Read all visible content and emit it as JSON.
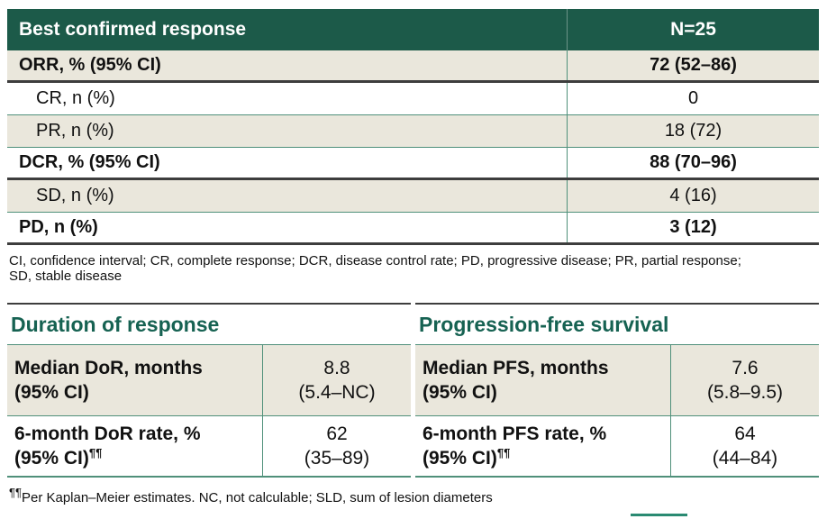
{
  "theme": {
    "header_bg": "#1c5a49",
    "header_text": "#ffffff",
    "beige_row": "#eae7dc",
    "teal_border": "#4f907a",
    "dark_border": "#3d3d3d",
    "heading_text": "#166252",
    "accent": "#2a8a72"
  },
  "response_table": {
    "header": {
      "label": "Best confirmed response",
      "value": "N=25"
    },
    "rows": [
      {
        "label": "ORR, % (95% CI)",
        "value": "72 (52–86)"
      },
      {
        "label": "CR, n (%)",
        "value": "0"
      },
      {
        "label": "PR, n (%)",
        "value": "18 (72)"
      },
      {
        "label": "DCR, % (95% CI)",
        "value": "88 (70–96)"
      },
      {
        "label": "SD, n (%)",
        "value": "4 (16)"
      },
      {
        "label": "PD, n (%)",
        "value": "3 (12)"
      }
    ],
    "footnote_line1": "CI, confidence interval; CR, complete response; DCR, disease control rate; PD, progressive disease; PR, partial response;",
    "footnote_line2": "SD, stable disease"
  },
  "dor_table": {
    "title": "Duration of response",
    "rows": [
      {
        "label_line1": "Median DoR, months",
        "label_line2": "(95% CI)",
        "sup": "",
        "value_line1": "8.8",
        "value_line2": "(5.4–NC)"
      },
      {
        "label_line1": "6-month DoR rate, %",
        "label_line2": "(95% CI)",
        "sup": "¶¶",
        "value_line1": "62",
        "value_line2": "(35–89)"
      }
    ]
  },
  "pfs_table": {
    "title": "Progression-free survival",
    "rows": [
      {
        "label_line1": "Median PFS, months",
        "label_line2": "(95% CI)",
        "sup": "",
        "value_line1": "7.6",
        "value_line2": "(5.8–9.5)"
      },
      {
        "label_line1": "6-month PFS rate, %",
        "label_line2": "(95% CI)",
        "sup": "¶¶",
        "value_line1": "64",
        "value_line2": "(44–84)"
      }
    ]
  },
  "footnote2": {
    "sup": "¶¶",
    "text": "Per Kaplan–Meier estimates. NC, not calculable; SLD, sum of lesion diameters"
  }
}
